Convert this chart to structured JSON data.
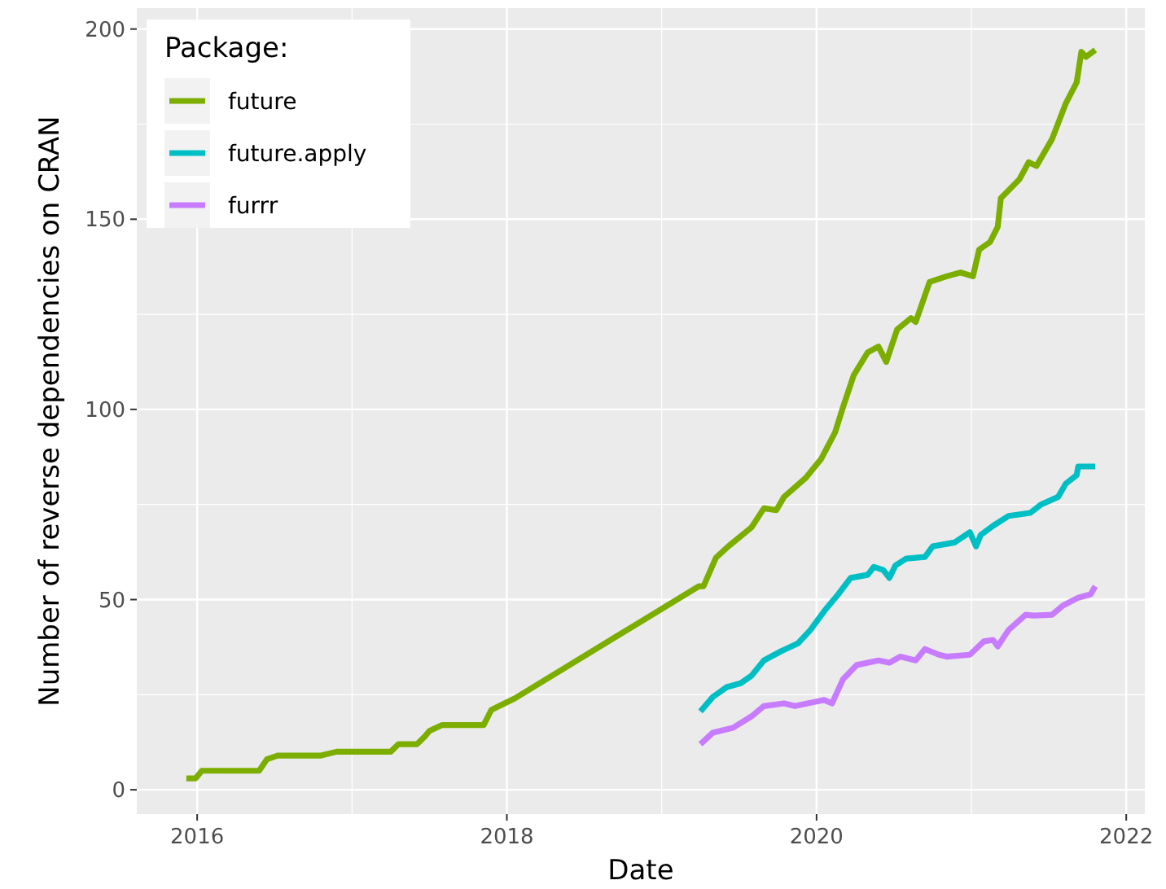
{
  "chart_data": {
    "type": "line",
    "xlabel": "Date",
    "ylabel": "Number of reverse dependencies on CRAN",
    "legend_title": "Package:",
    "legend": "top left",
    "grid": true,
    "line_style": "solid",
    "xlim": [
      2015.61,
      2022.12
    ],
    "xticks": [
      2016,
      2018,
      2020,
      2022
    ],
    "ylim": [
      -6.4,
      205.5
    ],
    "yticks": [
      0,
      50,
      100,
      150,
      200
    ],
    "series": [
      {
        "name": "future",
        "color": "#7cae00",
        "x": [
          2015.93,
          2015.99,
          2016.03,
          2016.4,
          2016.45,
          2016.52,
          2016.8,
          2016.9,
          2017.25,
          2017.3,
          2017.42,
          2017.47,
          2017.5,
          2017.58,
          2017.85,
          2017.9,
          2017.95,
          2018.05,
          2019.24,
          2019.27,
          2019.35,
          2019.43,
          2019.58,
          2019.66,
          2019.74,
          2019.79,
          2019.93,
          2020.03,
          2020.12,
          2020.17,
          2020.24,
          2020.33,
          2020.4,
          2020.45,
          2020.52,
          2020.61,
          2020.64,
          2020.73,
          2020.84,
          2020.93,
          2021.01,
          2021.05,
          2021.12,
          2021.17,
          2021.19,
          2021.31,
          2021.37,
          2021.42,
          2021.52,
          2021.61,
          2021.68,
          2021.71,
          2021.74,
          2021.8
        ],
        "values": [
          3,
          3,
          5,
          5,
          8,
          9,
          9,
          10,
          10,
          12,
          12,
          14,
          15.5,
          17,
          17,
          21,
          22,
          24,
          53.5,
          53.5,
          61,
          64,
          69,
          74,
          73.5,
          77,
          82,
          87,
          94,
          100.5,
          109,
          115,
          116.5,
          112.5,
          121,
          124,
          123,
          133.5,
          135,
          136,
          135,
          142,
          144,
          148,
          155.5,
          160.5,
          165,
          164,
          171,
          180.5,
          186,
          194,
          192.7,
          194.5
        ]
      },
      {
        "name": "future.apply",
        "color": "#00bfc4",
        "x": [
          2019.25,
          2019.33,
          2019.42,
          2019.51,
          2019.58,
          2019.66,
          2019.77,
          2019.88,
          2019.96,
          2020.05,
          2020.14,
          2020.22,
          2020.33,
          2020.37,
          2020.43,
          2020.47,
          2020.51,
          2020.58,
          2020.7,
          2020.75,
          2020.89,
          2020.99,
          2021.03,
          2021.06,
          2021.14,
          2021.24,
          2021.38,
          2021.45,
          2021.56,
          2021.61,
          2021.68,
          2021.69,
          2021.8
        ],
        "values": [
          20.6,
          24.4,
          27,
          28,
          30,
          34,
          36.4,
          38.5,
          42,
          47,
          51.4,
          55.7,
          56.5,
          58.6,
          57.8,
          55.7,
          59,
          60.8,
          61.2,
          64,
          65,
          67.7,
          64,
          67,
          69.4,
          72,
          72.8,
          75,
          77,
          80.5,
          82.7,
          85,
          85
        ]
      },
      {
        "name": "furrr",
        "color": "#c77cff",
        "x": [
          2019.25,
          2019.33,
          2019.46,
          2019.58,
          2019.66,
          2019.79,
          2019.86,
          2020.05,
          2020.1,
          2020.17,
          2020.26,
          2020.4,
          2020.47,
          2020.54,
          2020.64,
          2020.7,
          2020.79,
          2020.84,
          2020.99,
          2021.08,
          2021.14,
          2021.17,
          2021.24,
          2021.35,
          2021.4,
          2021.52,
          2021.59,
          2021.69,
          2021.77,
          2021.8
        ],
        "values": [
          12,
          15,
          16.3,
          19.3,
          22,
          22.7,
          22,
          23.6,
          22.7,
          29,
          32.8,
          34,
          33.4,
          35,
          34,
          37,
          35.5,
          35,
          35.5,
          39,
          39.4,
          37.7,
          42,
          46,
          45.8,
          46,
          48.4,
          50.5,
          51.4,
          53.5
        ]
      }
    ]
  }
}
